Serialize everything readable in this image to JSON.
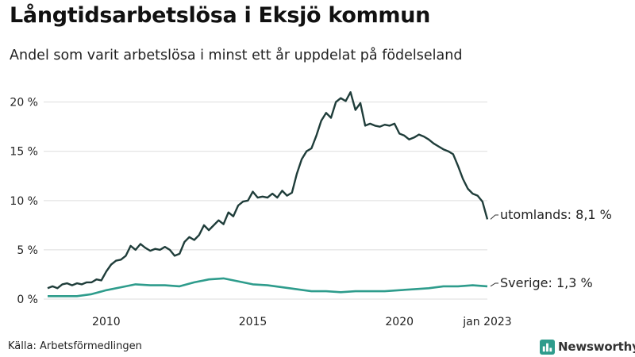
{
  "title": "Långtidsarbetslösa i Eksjö kommun",
  "subtitle": "Andel som varit arbetslösa i minst ett år uppdelat på födelseland",
  "source": "Källa: Arbetsförmedlingen",
  "brand": {
    "name": "Newsworthy",
    "icon": "bar-chart-icon",
    "color": "#2e9c8c"
  },
  "chart_data": {
    "type": "line",
    "ylim": [
      0,
      21.5
    ],
    "ytick_values": [
      0,
      5,
      10,
      15,
      20
    ],
    "ytick_labels": [
      "0 %",
      "5 %",
      "10 %",
      "15 %",
      "20 %"
    ],
    "xtick_values": [
      "2010-01",
      "2015-01",
      "2020-01",
      "2023-01"
    ],
    "xtick_labels": [
      "2010",
      "2015",
      "2020",
      "jan 2023"
    ],
    "grid": true,
    "series": [
      {
        "name": "utomlands",
        "color": "#1f3d3a",
        "end_label": "utomlands: 8,1 %",
        "points": [
          [
            "2008-01",
            1.1
          ],
          [
            "2008-03",
            1.3
          ],
          [
            "2008-05",
            1.1
          ],
          [
            "2008-07",
            1.5
          ],
          [
            "2008-09",
            1.6
          ],
          [
            "2008-11",
            1.4
          ],
          [
            "2009-01",
            1.6
          ],
          [
            "2009-03",
            1.5
          ],
          [
            "2009-05",
            1.7
          ],
          [
            "2009-07",
            1.7
          ],
          [
            "2009-09",
            2.0
          ],
          [
            "2009-11",
            1.9
          ],
          [
            "2010-01",
            2.8
          ],
          [
            "2010-03",
            3.5
          ],
          [
            "2010-05",
            3.9
          ],
          [
            "2010-07",
            4.0
          ],
          [
            "2010-09",
            4.4
          ],
          [
            "2010-11",
            5.4
          ],
          [
            "2011-01",
            5.0
          ],
          [
            "2011-03",
            5.6
          ],
          [
            "2011-05",
            5.2
          ],
          [
            "2011-07",
            4.9
          ],
          [
            "2011-09",
            5.1
          ],
          [
            "2011-11",
            5.0
          ],
          [
            "2012-01",
            5.3
          ],
          [
            "2012-03",
            5.0
          ],
          [
            "2012-05",
            4.4
          ],
          [
            "2012-07",
            4.6
          ],
          [
            "2012-09",
            5.8
          ],
          [
            "2012-11",
            6.3
          ],
          [
            "2013-01",
            6.0
          ],
          [
            "2013-03",
            6.5
          ],
          [
            "2013-05",
            7.5
          ],
          [
            "2013-07",
            7.0
          ],
          [
            "2013-09",
            7.5
          ],
          [
            "2013-11",
            8.0
          ],
          [
            "2014-01",
            7.6
          ],
          [
            "2014-03",
            8.8
          ],
          [
            "2014-05",
            8.4
          ],
          [
            "2014-07",
            9.5
          ],
          [
            "2014-09",
            9.9
          ],
          [
            "2014-11",
            10.0
          ],
          [
            "2015-01",
            10.9
          ],
          [
            "2015-03",
            10.3
          ],
          [
            "2015-05",
            10.4
          ],
          [
            "2015-07",
            10.3
          ],
          [
            "2015-09",
            10.7
          ],
          [
            "2015-11",
            10.3
          ],
          [
            "2016-01",
            11.0
          ],
          [
            "2016-03",
            10.5
          ],
          [
            "2016-05",
            10.8
          ],
          [
            "2016-07",
            12.7
          ],
          [
            "2016-09",
            14.2
          ],
          [
            "2016-11",
            15.0
          ],
          [
            "2017-01",
            15.3
          ],
          [
            "2017-03",
            16.6
          ],
          [
            "2017-05",
            18.1
          ],
          [
            "2017-07",
            18.9
          ],
          [
            "2017-09",
            18.4
          ],
          [
            "2017-11",
            20.0
          ],
          [
            "2018-01",
            20.4
          ],
          [
            "2018-03",
            20.1
          ],
          [
            "2018-05",
            21.0
          ],
          [
            "2018-07",
            19.2
          ],
          [
            "2018-09",
            19.9
          ],
          [
            "2018-11",
            17.6
          ],
          [
            "2019-01",
            17.8
          ],
          [
            "2019-03",
            17.6
          ],
          [
            "2019-05",
            17.5
          ],
          [
            "2019-07",
            17.7
          ],
          [
            "2019-09",
            17.6
          ],
          [
            "2019-11",
            17.8
          ],
          [
            "2020-01",
            16.8
          ],
          [
            "2020-03",
            16.6
          ],
          [
            "2020-05",
            16.2
          ],
          [
            "2020-07",
            16.4
          ],
          [
            "2020-09",
            16.7
          ],
          [
            "2020-11",
            16.5
          ],
          [
            "2021-01",
            16.2
          ],
          [
            "2021-03",
            15.8
          ],
          [
            "2021-05",
            15.5
          ],
          [
            "2021-07",
            15.2
          ],
          [
            "2021-09",
            15.0
          ],
          [
            "2021-11",
            14.7
          ],
          [
            "2022-01",
            13.5
          ],
          [
            "2022-03",
            12.2
          ],
          [
            "2022-05",
            11.2
          ],
          [
            "2022-07",
            10.7
          ],
          [
            "2022-09",
            10.5
          ],
          [
            "2022-11",
            9.9
          ],
          [
            "2023-01",
            8.1
          ]
        ]
      },
      {
        "name": "Sverige",
        "color": "#2e9c8c",
        "end_label": "Sverige: 1,3 %",
        "points": [
          [
            "2008-01",
            0.3
          ],
          [
            "2008-07",
            0.3
          ],
          [
            "2009-01",
            0.3
          ],
          [
            "2009-07",
            0.5
          ],
          [
            "2010-01",
            0.9
          ],
          [
            "2010-07",
            1.2
          ],
          [
            "2011-01",
            1.5
          ],
          [
            "2011-07",
            1.4
          ],
          [
            "2012-01",
            1.4
          ],
          [
            "2012-07",
            1.3
          ],
          [
            "2013-01",
            1.7
          ],
          [
            "2013-07",
            2.0
          ],
          [
            "2014-01",
            2.1
          ],
          [
            "2014-07",
            1.8
          ],
          [
            "2015-01",
            1.5
          ],
          [
            "2015-07",
            1.4
          ],
          [
            "2016-01",
            1.2
          ],
          [
            "2016-07",
            1.0
          ],
          [
            "2017-01",
            0.8
          ],
          [
            "2017-07",
            0.8
          ],
          [
            "2018-01",
            0.7
          ],
          [
            "2018-07",
            0.8
          ],
          [
            "2019-01",
            0.8
          ],
          [
            "2019-07",
            0.8
          ],
          [
            "2020-01",
            0.9
          ],
          [
            "2020-07",
            1.0
          ],
          [
            "2021-01",
            1.1
          ],
          [
            "2021-07",
            1.3
          ],
          [
            "2022-01",
            1.3
          ],
          [
            "2022-07",
            1.4
          ],
          [
            "2023-01",
            1.3
          ]
        ]
      }
    ]
  }
}
